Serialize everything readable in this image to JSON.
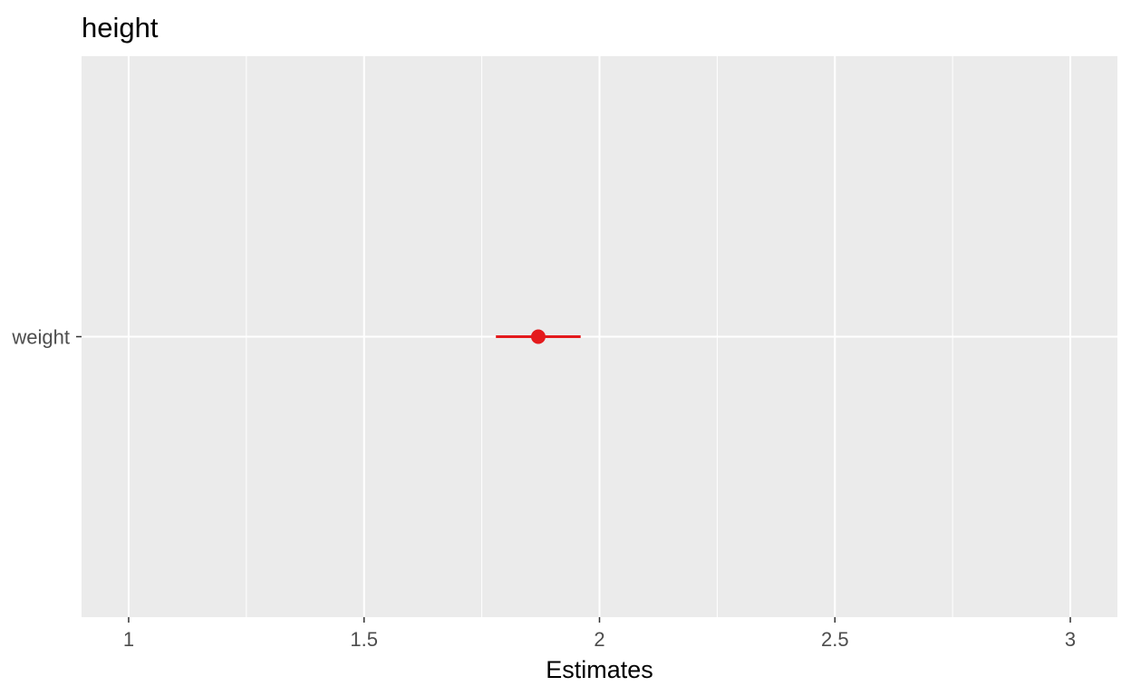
{
  "chart_data": {
    "type": "forest",
    "title": "height",
    "xlabel": "Estimates",
    "ylabel": "",
    "xlim": [
      0.9,
      3.1
    ],
    "x_major_ticks": [
      1,
      1.5,
      2,
      2.5,
      3
    ],
    "x_tick_labels": [
      "1",
      "1.5",
      "2",
      "2.5",
      "3"
    ],
    "x_minor_gridlines": [
      1.25,
      1.75,
      2.25,
      2.75
    ],
    "categories": [
      "weight"
    ],
    "points": [
      {
        "term": "weight",
        "estimate": 1.87,
        "ci_low": 1.78,
        "ci_high": 1.96
      }
    ],
    "colors": {
      "panel_background": "#ebebeb",
      "grid": "#ffffff",
      "point": "#e41a1c"
    },
    "grid": true
  }
}
